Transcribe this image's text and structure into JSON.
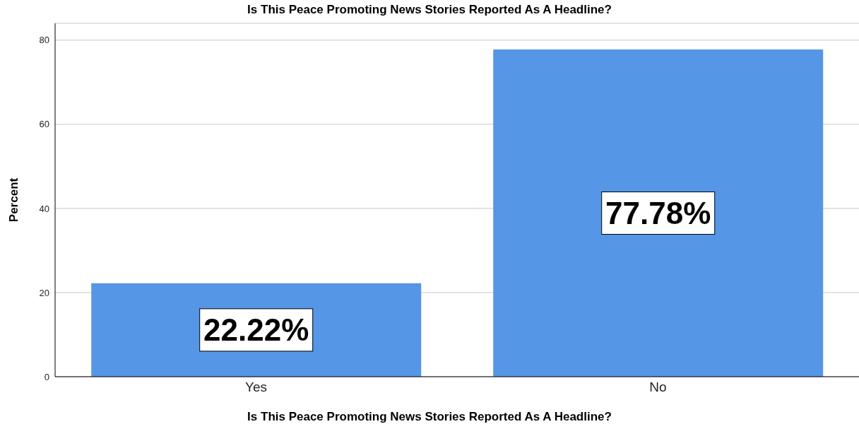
{
  "chart_data": {
    "type": "bar",
    "title": "Is This Peace Promoting News Stories Reported As A Headline?",
    "xlabel": "Is This Peace Promoting News Stories Reported As A Headline?",
    "ylabel": "Percent",
    "categories": [
      "Yes",
      "No"
    ],
    "values": [
      22.22,
      77.78
    ],
    "value_labels": [
      "22.22%",
      "77.78%"
    ],
    "color": "#5596e6",
    "ylim": [
      0,
      84
    ],
    "yticks": [
      0,
      20,
      40,
      60,
      80
    ],
    "grid": "y"
  }
}
